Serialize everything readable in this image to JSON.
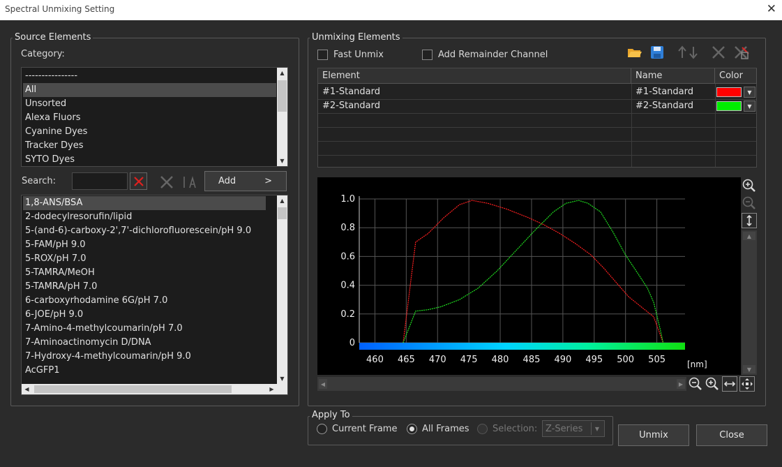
{
  "window": {
    "title": "Spectral Unmixing Setting"
  },
  "source": {
    "legend": "Source Elements",
    "category_label": "Category:",
    "categories": [
      "----------------",
      "All",
      "Unsorted",
      "Alexa Fluors",
      "Cyanine Dyes",
      "Tracker Dyes",
      "SYTO Dyes"
    ],
    "selected_category": "All",
    "search_label": "Search:",
    "search_value": "",
    "add_label": "Add",
    "add_arrow": ">",
    "elements": [
      "1,8-ANS/BSA",
      "2-dodecylresorufin/lipid",
      "5-(and-6)-carboxy-2',7'-dichlorofluorescein/pH 9.0",
      "5-FAM/pH 9.0",
      "5-ROX/pH 7.0",
      "5-TAMRA/MeOH",
      "5-TAMRA/pH 7.0",
      "6-carboxyrhodamine 6G/pH 7.0",
      "6-JOE/pH 9.0",
      "7-Amino-4-methylcoumarin/pH 7.0",
      "7-Aminoactinomycin D/DNA",
      "7-Hydroxy-4-methylcoumarin/pH 9.0",
      "AcGFP1"
    ],
    "selected_element": "1,8-ANS/BSA"
  },
  "unmix": {
    "legend": "Unmixing Elements",
    "fast_unmix_label": "Fast Unmix",
    "fast_unmix_checked": false,
    "remainder_label": "Add Remainder Channel",
    "remainder_checked": false,
    "columns": [
      "Element",
      "Name",
      "Color"
    ],
    "rows": [
      {
        "element": "#1-Standard",
        "name": "#1-Standard",
        "color": "#ff0000"
      },
      {
        "element": "#2-Standard",
        "name": "#2-Standard",
        "color": "#00ee00"
      }
    ]
  },
  "chart_data": {
    "type": "line",
    "xlabel": "[nm]",
    "ylabel": "",
    "xlim": [
      457.5,
      509.5
    ],
    "ylim": [
      0,
      1.0
    ],
    "xticks": [
      460,
      465,
      470,
      475,
      480,
      485,
      490,
      495,
      500,
      505
    ],
    "yticks": [
      0,
      0.2,
      0.4,
      0.6,
      0.8,
      1.0
    ],
    "ytick_labels": [
      "0",
      "0.2",
      "0.4",
      "0.6",
      "0.8",
      "1.0"
    ],
    "grid": true,
    "series": [
      {
        "name": "#1-Standard",
        "color": "#ff2020",
        "x": [
          464.5,
          466.5,
          468.5,
          471,
          473.5,
          475.5,
          478,
          481,
          484.5,
          487,
          489.5,
          492,
          494.5,
          496.5,
          498.5,
          500.5,
          502.5,
          504.5,
          505.5,
          506
        ],
        "y": [
          0.0,
          0.7,
          0.76,
          0.87,
          0.96,
          0.99,
          0.97,
          0.93,
          0.87,
          0.82,
          0.76,
          0.69,
          0.61,
          0.52,
          0.42,
          0.32,
          0.25,
          0.18,
          0.06,
          0.0
        ]
      },
      {
        "name": "#2-Standard",
        "color": "#20e020",
        "x": [
          464.5,
          466.5,
          468.5,
          470.5,
          473.5,
          476.5,
          479.5,
          482.5,
          485.5,
          488.5,
          490.5,
          492.5,
          494,
          496,
          498,
          500,
          502,
          503.5,
          504.5,
          505.5,
          506
        ],
        "y": [
          0.0,
          0.22,
          0.23,
          0.25,
          0.3,
          0.38,
          0.5,
          0.64,
          0.78,
          0.91,
          0.97,
          0.99,
          0.97,
          0.91,
          0.77,
          0.61,
          0.48,
          0.38,
          0.28,
          0.1,
          0.0
        ]
      }
    ]
  },
  "apply": {
    "legend": "Apply To",
    "options": [
      "Current Frame",
      "All Frames",
      "Selection:"
    ],
    "selected": "All Frames",
    "selection_value": "Z-Series"
  },
  "buttons": {
    "unmix": "Unmix",
    "close": "Close"
  },
  "icons": [
    "close-icon",
    "clear-search-icon",
    "delete-icon",
    "text-format-icon",
    "open-folder-icon",
    "save-icon",
    "move-up-down-icon",
    "remove-icon",
    "remove-all-icon",
    "zoom-in-icon",
    "zoom-out-icon",
    "fit-vertical-icon",
    "fit-horizontal-icon",
    "fit-all-icon",
    "dropdown-arrow-icon"
  ]
}
